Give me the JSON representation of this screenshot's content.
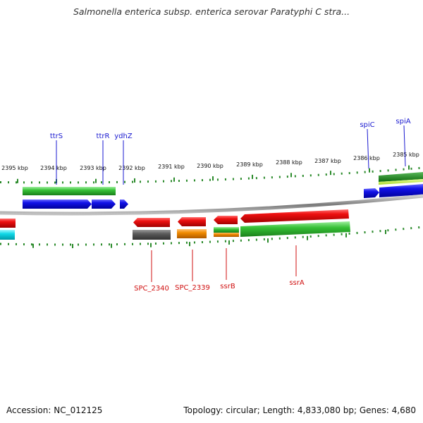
{
  "header": {
    "title": "Salmonella enterica subsp. enterica serovar Paratyphi C stra..."
  },
  "footer": {
    "accession": "Accession: NC_012125",
    "topology": "Topology: circular; Length: 4,833,080 bp; Genes: 4,680"
  },
  "ruler": {
    "ticks": [
      "2395 kbp",
      "2394 kbp",
      "2393 kbp",
      "2392 kbp",
      "2391 kbp",
      "2390 kbp",
      "2389 kbp",
      "2388 kbp",
      "2387 kbp",
      "2386 kbp",
      "2385 kbp"
    ]
  },
  "top_labels": [
    "ttrS",
    "ttrR",
    "ydhZ",
    "spiC",
    "spiA"
  ],
  "bottom_labels": [
    "SPC_2340",
    "SPC_2339",
    "ssrB",
    "ssrA"
  ],
  "colors": {
    "forward_cds": "#1010e0",
    "reverse_cds": "#e01010",
    "green_track": "#30b030",
    "gray_track": "#5a5a5a",
    "orange_track": "#f08000",
    "cyan_track": "#00d0e0",
    "ticks": "#2a8a2a",
    "backbone": "#888888"
  }
}
